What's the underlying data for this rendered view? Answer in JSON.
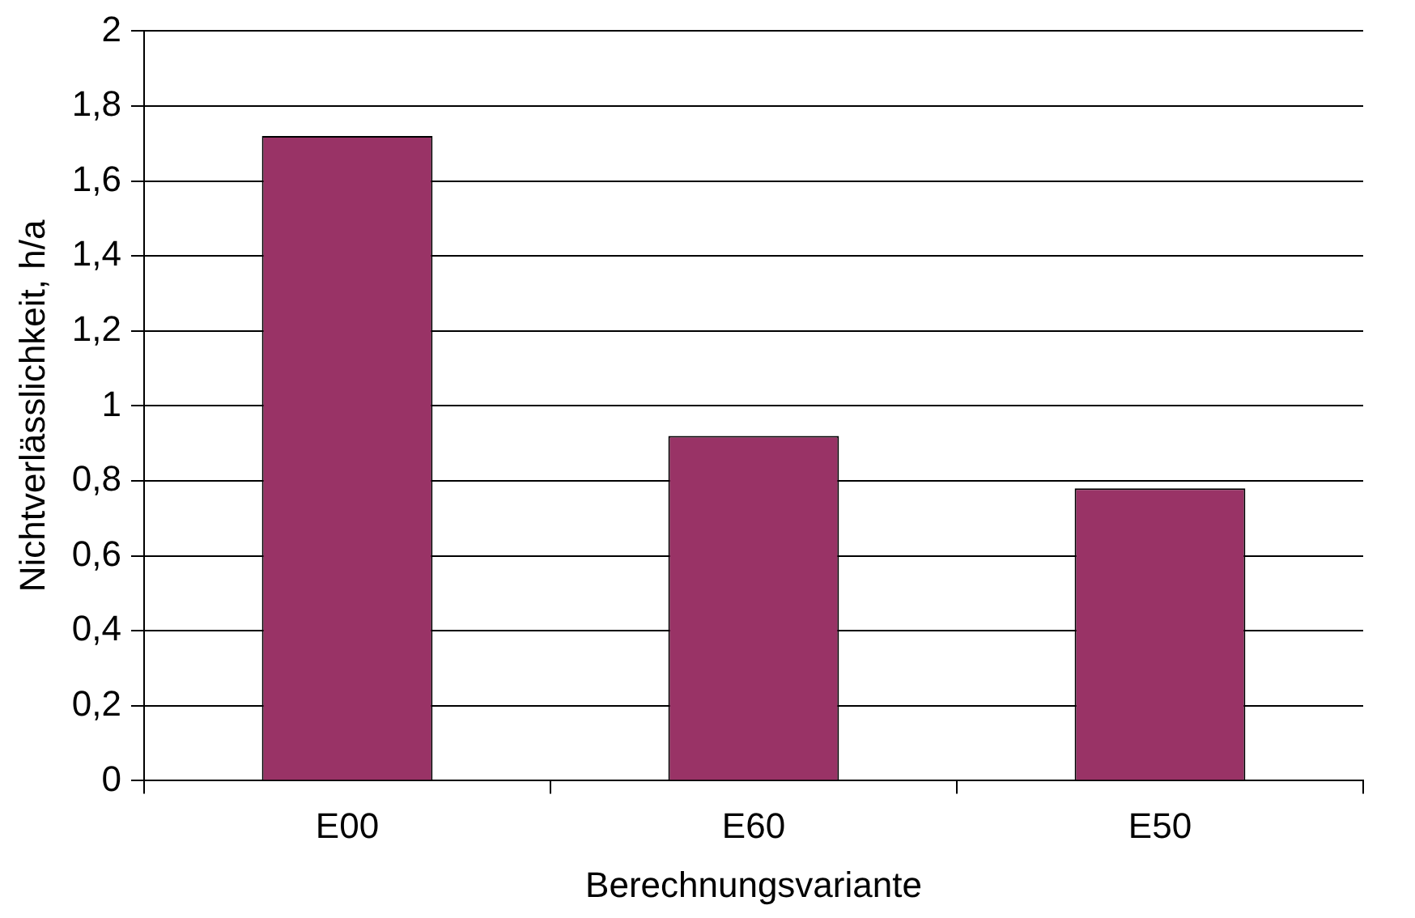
{
  "chart_data": {
    "type": "bar",
    "xlabel": "Berechnungsvariante",
    "ylabel": "Nichtverlässlichkeit, h/a",
    "categories": [
      "E00",
      "E60",
      "E50"
    ],
    "values": [
      1.72,
      0.92,
      0.78
    ],
    "color": "#993366",
    "ylim": [
      0,
      2
    ],
    "yticks": [
      {
        "value": 0,
        "label": "0"
      },
      {
        "value": 0.2,
        "label": "0,2"
      },
      {
        "value": 0.4,
        "label": "0,4"
      },
      {
        "value": 0.6,
        "label": "0,6"
      },
      {
        "value": 0.8,
        "label": "0,8"
      },
      {
        "value": 1,
        "label": "1"
      },
      {
        "value": 1.2,
        "label": "1,2"
      },
      {
        "value": 1.4,
        "label": "1,4"
      },
      {
        "value": 1.6,
        "label": "1,6"
      },
      {
        "value": 1.8,
        "label": "1,8"
      },
      {
        "value": 2,
        "label": "2"
      }
    ],
    "grid": "y",
    "legend": false
  }
}
